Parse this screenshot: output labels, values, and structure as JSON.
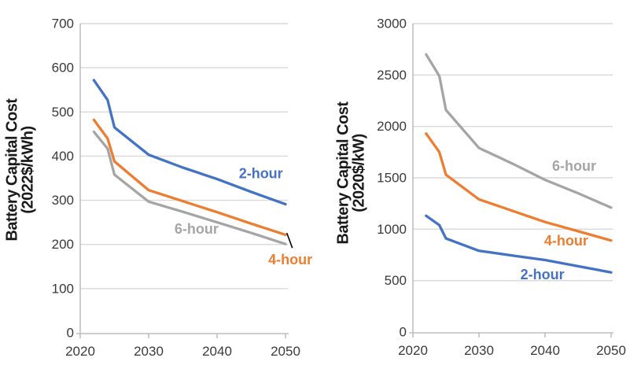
{
  "figure": {
    "background": "#ffffff"
  },
  "colors": {
    "grid": "#d9d9d9",
    "axis": "#bfbfbf",
    "tick_label": "#3a3a3a",
    "axis_title": "#1a1a1a",
    "annotation": "#000000",
    "blue_series": "#4472c4",
    "orange_series": "#ed7d31",
    "gray_series": "#a5a5a5"
  },
  "chart_data": [
    {
      "type": "line",
      "title": "",
      "ylabel": "Battery Capital Cost (2022$/kWh)",
      "ylabel_lines": [
        "Battery Capital Cost",
        "(2022$/kWh)"
      ],
      "xlabel": "",
      "xlim": [
        2020,
        2050
      ],
      "ylim": [
        0,
        700
      ],
      "yticks": [
        0,
        100,
        200,
        300,
        400,
        500,
        600,
        700
      ],
      "xticks": [
        2020,
        2030,
        2040,
        2050
      ],
      "grid": "horizontal",
      "legend": "inline-labels",
      "x": [
        2022,
        2024,
        2025,
        2030,
        2035,
        2040,
        2045,
        2050
      ],
      "series": [
        {
          "name": "6-hour",
          "color": "#a5a5a5",
          "values": [
            455,
            417,
            358,
            297,
            274,
            250,
            226,
            201
          ],
          "label": {
            "text": "6-hour",
            "x": 2037.0,
            "y": 235
          }
        },
        {
          "name": "4-hour",
          "color": "#ed7d31",
          "values": [
            482,
            440,
            388,
            323,
            298,
            273,
            247,
            222
          ],
          "label": {
            "text": "4-hour",
            "x": 2050.7,
            "y": 166
          }
        },
        {
          "name": "2-hour",
          "color": "#4472c4",
          "values": [
            572,
            527,
            465,
            403,
            374,
            348,
            319,
            291
          ],
          "label": {
            "text": "2-hour",
            "x": 2046.4,
            "y": 361
          }
        }
      ],
      "annotations": [
        {
          "type": "leader-line",
          "from": [
            2050.2,
            226
          ],
          "to": [
            2051.0,
            192
          ]
        }
      ]
    },
    {
      "type": "line",
      "title": "",
      "ylabel": "Battery Capital Cost (2020$/kW)",
      "ylabel_lines": [
        "Battery Capital Cost",
        "(2020$/kW)"
      ],
      "xlabel": "",
      "xlim": [
        2020,
        2050
      ],
      "ylim": [
        0,
        3000
      ],
      "yticks": [
        0,
        500,
        1000,
        1500,
        2000,
        2500,
        3000
      ],
      "xticks": [
        2020,
        2030,
        2040,
        2050
      ],
      "grid": "horizontal",
      "legend": "inline-labels",
      "x": [
        2022,
        2024,
        2025,
        2030,
        2035,
        2040,
        2045,
        2050
      ],
      "series": [
        {
          "name": "6-hour",
          "color": "#a5a5a5",
          "values": [
            2700,
            2490,
            2160,
            1790,
            1640,
            1480,
            1350,
            1210
          ],
          "label": {
            "text": "6-hour",
            "x": 2044.4,
            "y": 1614
          }
        },
        {
          "name": "4-hour",
          "color": "#ed7d31",
          "values": [
            1930,
            1750,
            1530,
            1290,
            1180,
            1070,
            980,
            890
          ],
          "label": {
            "text": "4-hour",
            "x": 2043.2,
            "y": 887
          }
        },
        {
          "name": "2-hour",
          "color": "#4472c4",
          "values": [
            1130,
            1040,
            910,
            790,
            745,
            700,
            640,
            580
          ],
          "label": {
            "text": "2-hour",
            "x": 2039.6,
            "y": 558
          }
        }
      ],
      "annotations": []
    }
  ]
}
